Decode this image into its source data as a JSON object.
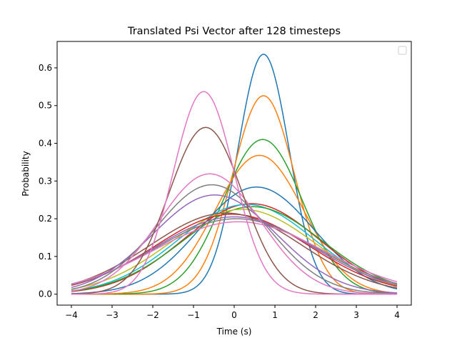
{
  "chart_data": {
    "type": "line",
    "title": "Translated Psi Vector after 128 timesteps",
    "xlabel": "Time (s)",
    "ylabel": "Probability",
    "xlim": [
      -4.35,
      4.35
    ],
    "ylim": [
      -0.029,
      0.67
    ],
    "xticks": [
      -4,
      -3,
      -2,
      -1,
      0,
      1,
      2,
      3,
      4
    ],
    "yticks": [
      0.0,
      0.1,
      0.2,
      0.3,
      0.4,
      0.5,
      0.6
    ],
    "x_range": [
      -4,
      4
    ],
    "grid": false,
    "legend": {
      "placement": "top-right",
      "entries": []
    },
    "series": [
      {
        "color": "#1f77b4",
        "mu": 0.72,
        "peak": 0.636
      },
      {
        "color": "#ff7f0e",
        "mu": 0.72,
        "peak": 0.526
      },
      {
        "color": "#2ca02c",
        "mu": 0.7,
        "peak": 0.41
      },
      {
        "color": "#ff7f0e",
        "mu": 0.62,
        "peak": 0.368
      },
      {
        "color": "#1f77b4",
        "mu": 0.55,
        "peak": 0.284
      },
      {
        "color": "#d62728",
        "mu": 0.42,
        "peak": 0.24
      },
      {
        "color": "#17becf",
        "mu": 0.3,
        "peak": 0.238
      },
      {
        "color": "#2ca02c",
        "mu": 0.45,
        "peak": 0.232
      },
      {
        "color": "#bcbd22",
        "mu": 0.2,
        "peak": 0.225
      },
      {
        "color": "#d62728",
        "mu": -0.05,
        "peak": 0.212
      },
      {
        "color": "#8c564b",
        "mu": -0.2,
        "peak": 0.215
      },
      {
        "color": "#9467bd",
        "mu": 0.0,
        "peak": 0.205
      },
      {
        "color": "#7f7f7f",
        "mu": 0.05,
        "peak": 0.2
      },
      {
        "color": "#e377c2",
        "mu": 0.1,
        "peak": 0.192
      },
      {
        "color": "#9467bd",
        "mu": -0.48,
        "peak": 0.263
      },
      {
        "color": "#7f7f7f",
        "mu": -0.55,
        "peak": 0.29
      },
      {
        "color": "#e377c2",
        "mu": -0.6,
        "peak": 0.319
      },
      {
        "color": "#8c564b",
        "mu": -0.7,
        "peak": 0.442
      },
      {
        "color": "#e377c2",
        "mu": -0.75,
        "peak": 0.537
      }
    ]
  }
}
